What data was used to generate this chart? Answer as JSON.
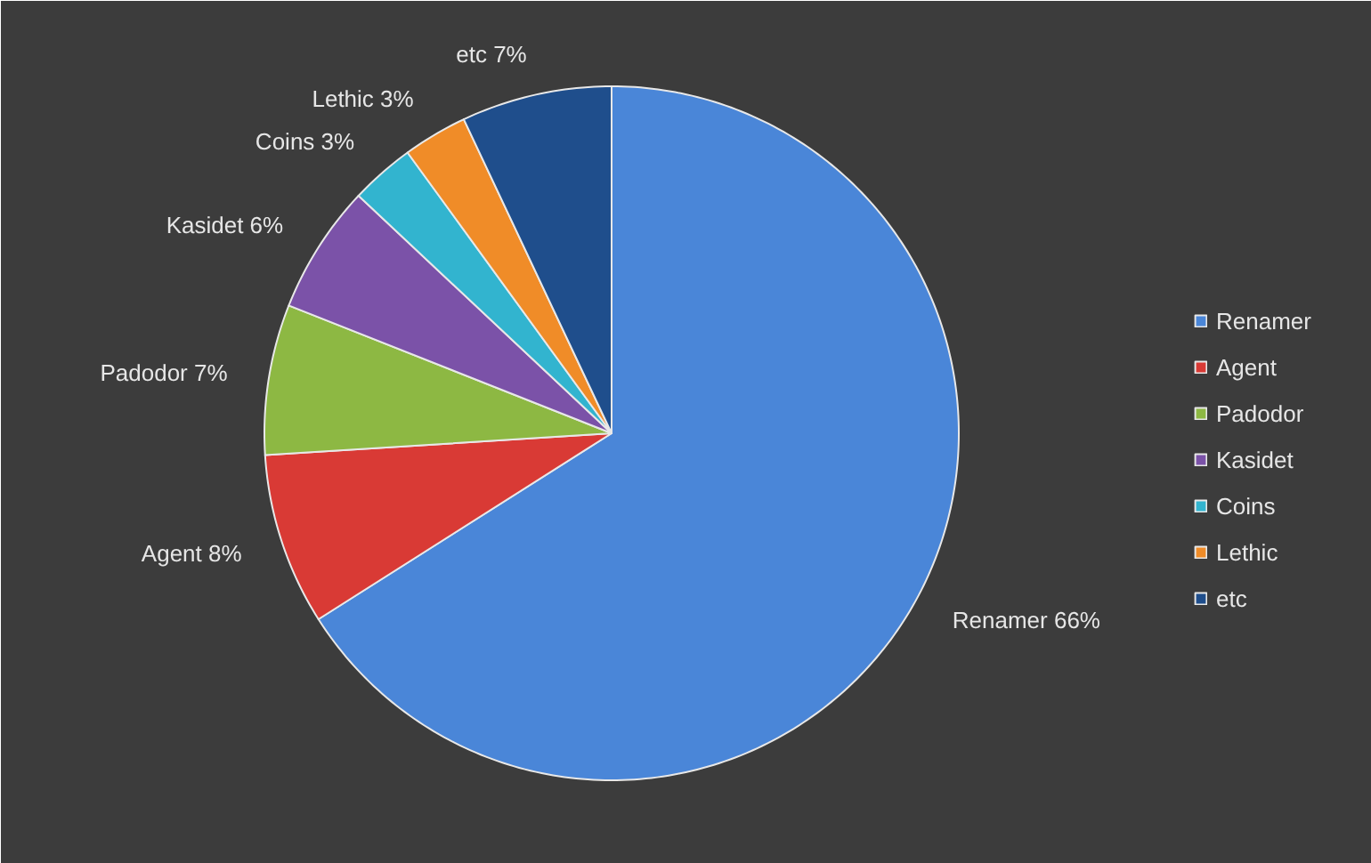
{
  "chart_data": {
    "type": "pie",
    "categories": [
      "Renamer",
      "Agent",
      "Padodor",
      "Kasidet",
      "Coins",
      "Lethic",
      "etc"
    ],
    "values": [
      66,
      8,
      7,
      6,
      3,
      3,
      7
    ],
    "value_labels": [
      "66%",
      "8%",
      "7%",
      "6%",
      "3%",
      "3%",
      "7%"
    ],
    "colors": [
      "#4a86d8",
      "#d93a35",
      "#8db843",
      "#7b52a8",
      "#32b4cf",
      "#f08c28",
      "#1f4e8c"
    ],
    "legend": "right"
  }
}
